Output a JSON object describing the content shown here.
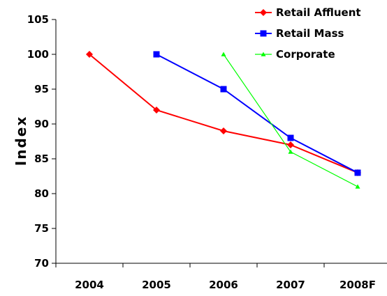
{
  "chart_data": {
    "type": "line",
    "title": "",
    "xlabel": "",
    "ylabel": "Index",
    "categories": [
      "2004",
      "2005",
      "2006",
      "2007",
      "2008F"
    ],
    "ylim": [
      70,
      105
    ],
    "yticks": [
      70,
      75,
      80,
      85,
      90,
      95,
      100,
      105
    ],
    "grid": false,
    "legend_position": "top-right",
    "series": [
      {
        "name": "Retail Affluent",
        "color": "#ff0000",
        "marker": "diamond",
        "values": [
          100,
          92,
          89,
          87,
          83
        ]
      },
      {
        "name": "Retail Mass",
        "color": "#0000ff",
        "marker": "square",
        "values": [
          null,
          100,
          95,
          88,
          83
        ]
      },
      {
        "name": "Corporate",
        "color": "#00ff00",
        "marker": "triangle",
        "values": [
          null,
          null,
          100,
          86,
          81
        ]
      }
    ]
  }
}
